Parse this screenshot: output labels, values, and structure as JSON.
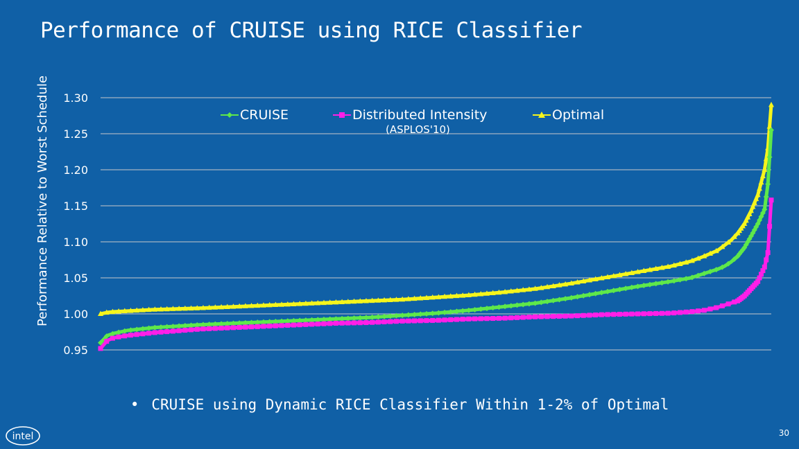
{
  "slide": {
    "title": "Performance of CRUISE using RICE Classifier",
    "bullet": "CRUISE using Dynamic RICE Classifier Within 1-2% of Optimal",
    "page_number": "30",
    "logo_text": "intel"
  },
  "colors": {
    "background": "#1060a6",
    "gridline": "#c9c9c9",
    "CRUISE": "#5ee84a",
    "Distributed Intensity": "#ff1fe8",
    "Optimal": "#f5f51c"
  },
  "chart_data": {
    "type": "line",
    "title": "",
    "xlabel": "",
    "ylabel": "Performance Relative to Worst Schedule",
    "ylim": [
      0.95,
      1.3
    ],
    "yticks": [
      "1.30",
      "1.25",
      "1.20",
      "1.15",
      "1.10",
      "1.05",
      "1.00",
      "0.95"
    ],
    "grid": true,
    "legend_position": "top",
    "legend_note": "(ASPLOS'10)",
    "x_is_sorted_rank": true,
    "x": [
      0,
      1,
      2,
      4,
      8,
      15,
      20,
      25,
      30,
      35,
      40,
      45,
      50,
      55,
      60,
      65,
      70,
      75,
      80,
      85,
      88,
      90,
      92,
      93,
      94,
      95,
      96,
      97,
      98,
      99,
      99.5,
      100
    ],
    "series": [
      {
        "name": "CRUISE",
        "marker": "diamond",
        "values": [
          0.96,
          0.97,
          0.973,
          0.977,
          0.981,
          0.985,
          0.987,
          0.989,
          0.991,
          0.993,
          0.995,
          0.998,
          1.001,
          1.005,
          1.01,
          1.015,
          1.022,
          1.03,
          1.038,
          1.045,
          1.05,
          1.056,
          1.062,
          1.066,
          1.072,
          1.08,
          1.092,
          1.108,
          1.125,
          1.145,
          1.18,
          1.255
        ]
      },
      {
        "name": "Distributed Intensity",
        "marker": "square",
        "values": [
          0.952,
          0.963,
          0.967,
          0.97,
          0.974,
          0.979,
          0.981,
          0.983,
          0.985,
          0.987,
          0.988,
          0.99,
          0.991,
          0.993,
          0.994,
          0.996,
          0.997,
          0.999,
          1.0,
          1.001,
          1.003,
          1.005,
          1.009,
          1.012,
          1.015,
          1.018,
          1.025,
          1.035,
          1.045,
          1.065,
          1.085,
          1.158
        ]
      },
      {
        "name": "Optimal",
        "marker": "triangle",
        "values": [
          1.0,
          1.002,
          1.003,
          1.004,
          1.006,
          1.008,
          1.01,
          1.012,
          1.014,
          1.016,
          1.018,
          1.02,
          1.023,
          1.026,
          1.03,
          1.035,
          1.042,
          1.05,
          1.058,
          1.066,
          1.073,
          1.08,
          1.088,
          1.095,
          1.102,
          1.112,
          1.125,
          1.143,
          1.165,
          1.2,
          1.23,
          1.29
        ]
      }
    ]
  }
}
